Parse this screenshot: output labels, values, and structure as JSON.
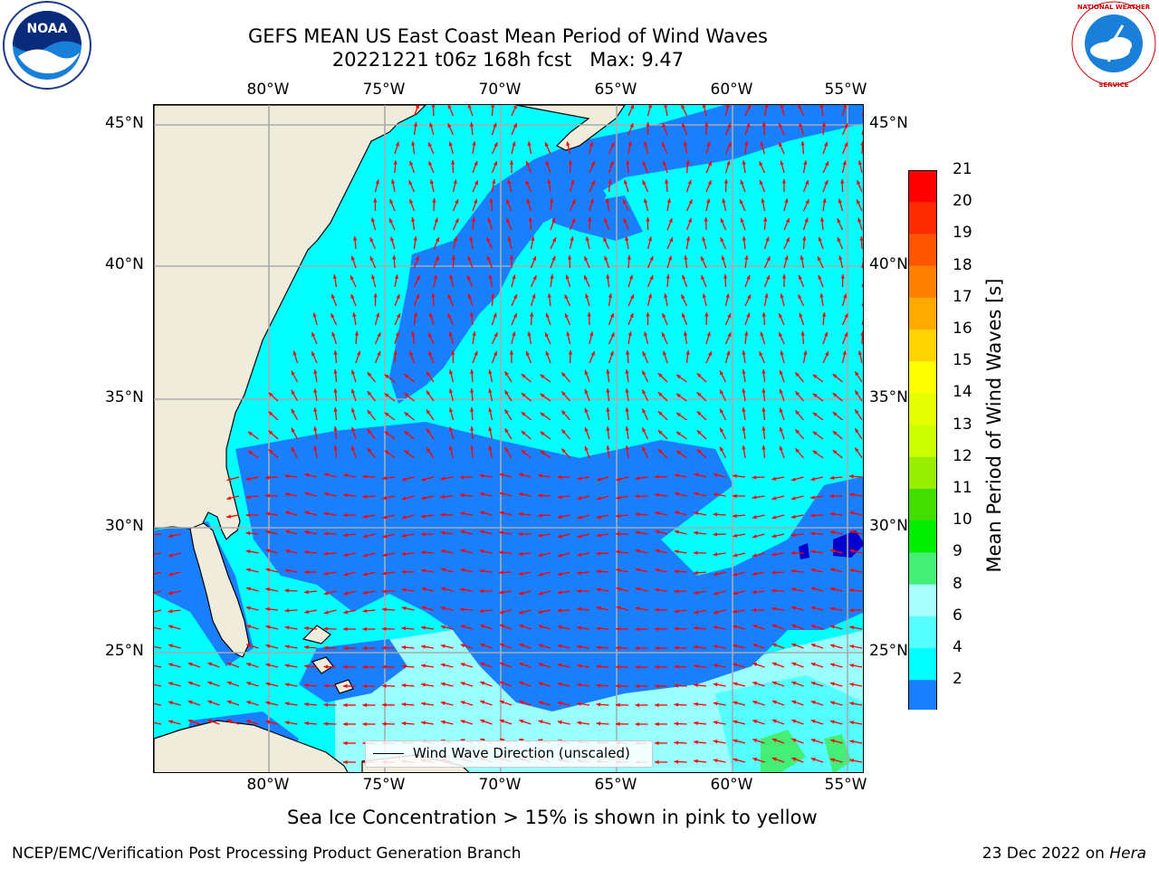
{
  "header": {
    "title_line1": "GEFS MEAN US East Coast Mean Period of Wind Waves",
    "title_line2": "20221221 t06z 168h fcst   Max: 9.47"
  },
  "logos": {
    "left": {
      "name": "noaa-logo",
      "text": "NOAA"
    },
    "right": {
      "name": "nws-logo",
      "text": "NATIONAL WEATHER SERVICE"
    }
  },
  "map": {
    "lon_labels": [
      "80°W",
      "75°W",
      "70°W",
      "65°W",
      "60°W",
      "55°W"
    ],
    "lat_labels": [
      "45°N",
      "40°N",
      "35°N",
      "30°N",
      "25°N"
    ],
    "legend_label": "Wind Wave Direction (unscaled)",
    "arrow_color": "#ff0000",
    "land_color": "#efecdc",
    "field_colors": {
      "low": "#1a7fff",
      "mid": "#00ffff",
      "high": "#99ffff",
      "min": "#0000cc"
    }
  },
  "colorbar": {
    "label": "Mean Period of Wind Waves [s]",
    "ticks": [
      "21",
      "20",
      "19",
      "18",
      "17",
      "16",
      "15",
      "14",
      "13",
      "12",
      "11",
      "10",
      "9",
      "8",
      "6",
      "4",
      "2"
    ],
    "colors": [
      "#ff0000",
      "#ff2a00",
      "#ff5500",
      "#ff7f00",
      "#ffaa00",
      "#ffd400",
      "#ffff00",
      "#e5ff00",
      "#ccff00",
      "#99ee00",
      "#44dd00",
      "#00ee00",
      "#44ee77",
      "#aaffff",
      "#55ffff",
      "#00ffff",
      "#1a7fff"
    ],
    "under_color": "#0000ff"
  },
  "notes": {
    "sea_ice": "Sea Ice Concentration > 15% is shown in pink to yellow"
  },
  "footer": {
    "left": "NCEP/EMC/Verification Post Processing Product Generation Branch",
    "right_date": "23 Dec 2022 on ",
    "right_host": "Hera"
  }
}
